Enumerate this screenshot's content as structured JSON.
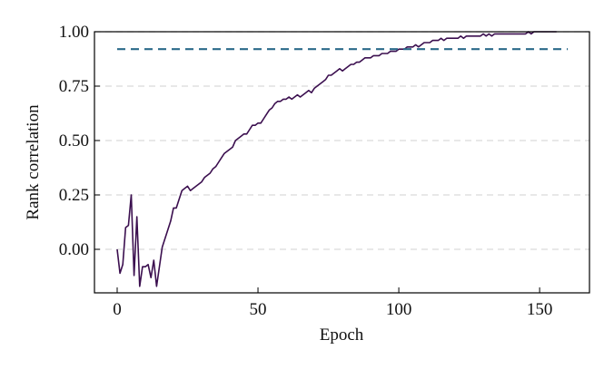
{
  "chart_data": {
    "type": "line",
    "xlabel": "Epoch",
    "ylabel": "Rank correlation",
    "xlim": [
      -8.06,
      167.7
    ],
    "ylim": [
      -0.2,
      1.0
    ],
    "xticks": [
      0,
      50,
      100,
      150
    ],
    "yticks": [
      {
        "value": 1.0,
        "label": "1.00"
      },
      0.75,
      {
        "value": 0.5,
        "label": "0.50"
      },
      0.25,
      {
        "value": 0,
        "label": "0.00"
      }
    ],
    "grid": true,
    "series": [
      {
        "color": "#3b0f4f",
        "linestyle": "solid",
        "x": [
          0,
          1,
          2,
          3,
          4,
          5,
          6,
          7,
          8,
          9,
          10,
          11,
          12,
          13,
          14,
          15,
          16,
          17,
          18,
          19,
          20,
          21,
          22,
          23,
          24,
          25,
          26,
          27,
          28,
          29,
          30,
          31,
          32,
          33,
          34,
          35,
          36,
          37,
          38,
          39,
          40,
          41,
          42,
          43,
          44,
          45,
          46,
          47,
          48,
          49,
          50,
          51,
          52,
          53,
          54,
          55,
          56,
          57,
          58,
          59,
          60,
          61,
          62,
          63,
          64,
          65,
          66,
          67,
          68,
          69,
          70,
          71,
          72,
          73,
          74,
          75,
          76,
          77,
          78,
          79,
          80,
          81,
          82,
          83,
          84,
          85,
          86,
          87,
          88,
          89,
          90,
          91,
          92,
          93,
          94,
          95,
          96,
          97,
          98,
          99,
          100,
          101,
          102,
          103,
          104,
          105,
          106,
          107,
          108,
          109,
          110,
          111,
          112,
          113,
          114,
          115,
          116,
          117,
          118,
          119,
          120,
          121,
          122,
          123,
          124,
          125,
          126,
          127,
          128,
          129,
          130,
          131,
          132,
          133,
          134,
          135,
          136,
          137,
          138,
          139,
          140,
          141,
          142,
          143,
          144,
          145,
          146,
          147,
          148,
          149,
          150,
          151,
          152,
          153,
          154,
          155,
          156
        ],
        "values": [
          0.0,
          -0.11,
          -0.07,
          0.1,
          0.11,
          0.25,
          -0.12,
          0.15,
          -0.17,
          -0.08,
          -0.08,
          -0.07,
          -0.13,
          -0.05,
          -0.17,
          -0.08,
          0.01,
          0.05,
          0.09,
          0.13,
          0.19,
          0.19,
          0.23,
          0.27,
          0.28,
          0.29,
          0.27,
          0.28,
          0.29,
          0.3,
          0.31,
          0.33,
          0.34,
          0.35,
          0.37,
          0.38,
          0.4,
          0.42,
          0.44,
          0.45,
          0.46,
          0.47,
          0.5,
          0.51,
          0.52,
          0.53,
          0.53,
          0.55,
          0.57,
          0.57,
          0.58,
          0.58,
          0.6,
          0.62,
          0.64,
          0.65,
          0.67,
          0.68,
          0.68,
          0.69,
          0.69,
          0.7,
          0.69,
          0.7,
          0.71,
          0.7,
          0.71,
          0.72,
          0.73,
          0.72,
          0.74,
          0.75,
          0.76,
          0.77,
          0.78,
          0.8,
          0.8,
          0.81,
          0.82,
          0.83,
          0.82,
          0.83,
          0.84,
          0.85,
          0.85,
          0.86,
          0.86,
          0.87,
          0.88,
          0.88,
          0.88,
          0.89,
          0.89,
          0.89,
          0.9,
          0.9,
          0.9,
          0.91,
          0.91,
          0.91,
          0.92,
          0.92,
          0.92,
          0.93,
          0.93,
          0.93,
          0.94,
          0.93,
          0.94,
          0.95,
          0.95,
          0.95,
          0.96,
          0.96,
          0.96,
          0.97,
          0.96,
          0.97,
          0.97,
          0.97,
          0.97,
          0.97,
          0.98,
          0.97,
          0.98,
          0.98,
          0.98,
          0.98,
          0.98,
          0.98,
          0.99,
          0.98,
          0.99,
          0.98,
          0.99,
          0.99,
          0.99,
          0.99,
          0.99,
          0.99,
          0.99,
          0.99,
          0.99,
          0.99,
          0.99,
          0.99,
          1.0,
          0.99,
          1.0,
          1.0,
          1.0,
          1.0,
          1.0,
          1.0,
          1.0,
          1.0,
          1.0
        ]
      },
      {
        "color": "#2b6a8a",
        "linestyle": "dashed",
        "x": [
          0,
          160
        ],
        "values": [
          0.92,
          0.92
        ]
      }
    ]
  }
}
